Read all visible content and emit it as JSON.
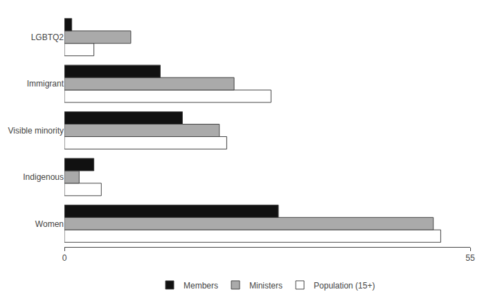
{
  "chart_data": {
    "type": "bar",
    "orientation": "horizontal",
    "categories": [
      "Women",
      "Indigenous",
      "Visible minority",
      "Immigrant",
      "LGBTQ2"
    ],
    "series": [
      {
        "name": "Members",
        "color": "#111111",
        "values": [
          29,
          4,
          16,
          13,
          1
        ]
      },
      {
        "name": "Ministers",
        "color": "#aaaaaa",
        "values": [
          50,
          2,
          21,
          23,
          9
        ]
      },
      {
        "name": "Population (15+)",
        "color": "#ffffff",
        "values": [
          51,
          5,
          22,
          28,
          4
        ]
      }
    ],
    "xlim": [
      0,
      55
    ],
    "xticks": [
      0,
      55
    ],
    "grid": false,
    "legend": "bottom"
  }
}
